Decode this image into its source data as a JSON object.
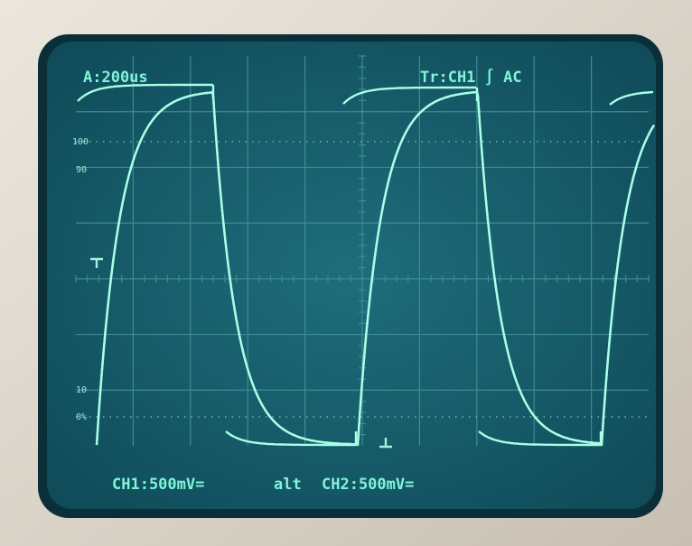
{
  "screen": {
    "timebase": "A:200us",
    "trigger": "Tr:CH1 ∫ AC",
    "scale_labels": [
      "100",
      "90",
      "10",
      "0%"
    ],
    "footer": {
      "ch1": "CH1:500mV=",
      "mode": "alt",
      "ch2": "CH2:500mV="
    }
  }
}
